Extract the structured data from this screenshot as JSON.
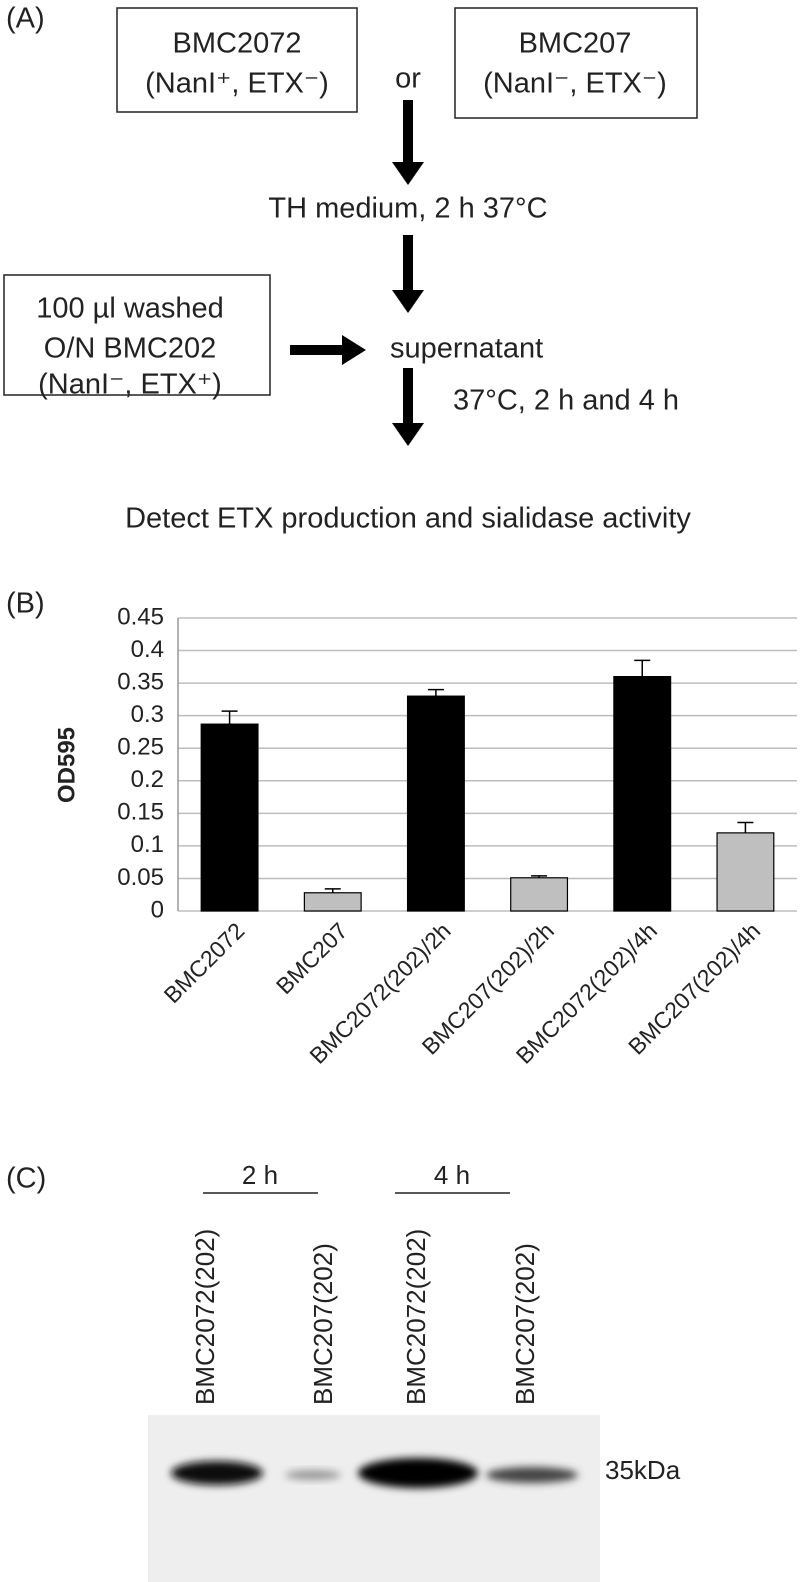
{
  "diagram": {
    "panel_label": "(A)",
    "inputs": [
      {
        "name": "BMC2072",
        "genotype": "(NanI⁺, ETX⁻)"
      },
      {
        "name": "BMC207",
        "genotype": "(NanI⁻, ETX⁻)"
      }
    ],
    "connector": "or",
    "step1": "TH medium, 2 h 37°C",
    "donor": [
      "100 µl washed",
      "O/N BMC202",
      "(NanI⁻, ETX⁺)"
    ],
    "product": "supernatant",
    "step2": "37°C, 2 h and 4 h",
    "readout": "Detect ETX production and sialidase activity"
  },
  "chart_data": {
    "type": "bar",
    "panel_label": "(B)",
    "y_label": "OD595",
    "categories": [
      "BMC2072",
      "BMC207",
      "BMC2072(202)/2h",
      "BMC207(202)/2h",
      "BMC2072(202)/4h",
      "BMC207(202)/4h"
    ],
    "values": [
      0.287,
      0.028,
      0.33,
      0.051,
      0.36,
      0.12
    ],
    "errors": [
      0.02,
      0.006,
      0.01,
      0.003,
      0.025,
      0.016
    ],
    "colors": [
      "#000000",
      "#bfbfbf",
      "#000000",
      "#bfbfbf",
      "#000000",
      "#bfbfbf"
    ],
    "ylim": [
      0,
      0.45
    ],
    "yticks": [
      0,
      0.05,
      0.1,
      0.15,
      0.2,
      0.25,
      0.3,
      0.35,
      0.4,
      0.45
    ],
    "grid": true
  },
  "blot": {
    "panel_label": "(C)",
    "time_groups": [
      "2 h",
      "4 h"
    ],
    "lanes": [
      "BMC2072(202)",
      "BMC207(202)",
      "BMC2072(202)",
      "BMC207(202)"
    ],
    "marker": "35kDa"
  }
}
